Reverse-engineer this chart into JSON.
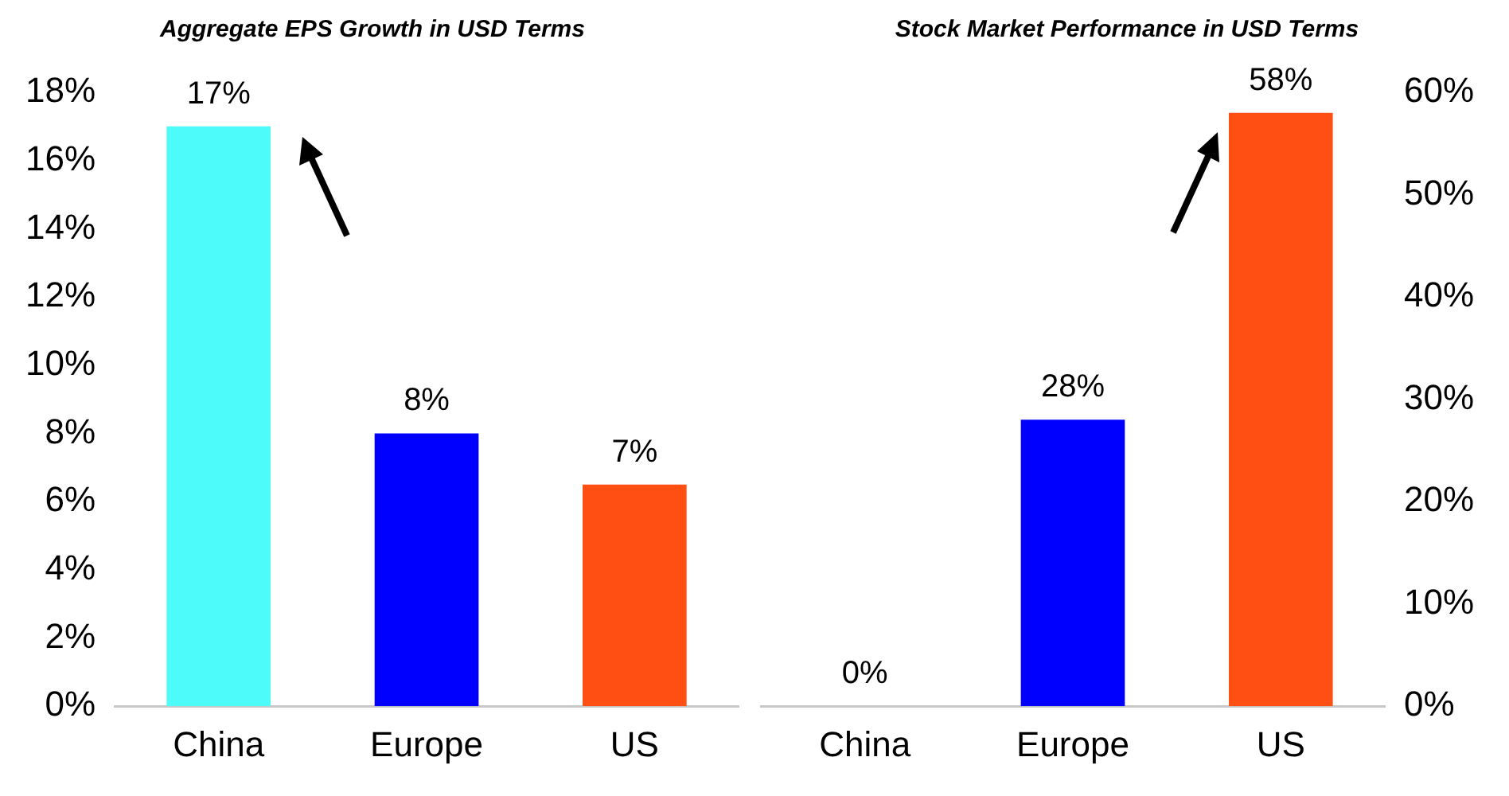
{
  "chart_data": [
    {
      "type": "bar",
      "title": "Aggregate EPS Growth in USD Terms",
      "categories": [
        "China",
        "Europe",
        "US"
      ],
      "series": [
        {
          "values": [
            17,
            8,
            6.5
          ],
          "colors": [
            "#4dfbfb",
            "#0000ff",
            "#ff4f12"
          ],
          "value_labels": [
            "17%",
            "8%",
            "7%"
          ]
        }
      ],
      "ylim": [
        0,
        18
      ],
      "yticks": [
        {
          "value": 0,
          "label": "0%"
        },
        {
          "value": 2,
          "label": "2%"
        },
        {
          "value": 4,
          "label": "4%"
        },
        {
          "value": 6,
          "label": "6%"
        },
        {
          "value": 8,
          "label": "8%"
        },
        {
          "value": 10,
          "label": "10%"
        },
        {
          "value": 12,
          "label": "12%"
        },
        {
          "value": 14,
          "label": "14%"
        },
        {
          "value": 16,
          "label": "16%"
        },
        {
          "value": 18,
          "label": "18%"
        }
      ],
      "grid": false,
      "legend": false
    },
    {
      "type": "bar",
      "title": "Stock Market Performance in USD Terms",
      "categories": [
        "China",
        "Europe",
        "US"
      ],
      "series": [
        {
          "axis": "y2",
          "values": [
            0,
            28,
            58
          ],
          "colors": [
            "#4dfbfb",
            "#0000ff",
            "#ff4f12"
          ],
          "value_labels": [
            "0%",
            "28%",
            "58%"
          ]
        }
      ],
      "y2lim": [
        0,
        60
      ],
      "y2ticks": [
        {
          "value": 0,
          "label": "0%"
        },
        {
          "value": 10,
          "label": "10%"
        },
        {
          "value": 20,
          "label": "20%"
        },
        {
          "value": 30,
          "label": "30%"
        },
        {
          "value": 40,
          "label": "40%"
        },
        {
          "value": 50,
          "label": "50%"
        },
        {
          "value": 60,
          "label": "60%"
        }
      ],
      "grid": false,
      "legend": false
    }
  ]
}
